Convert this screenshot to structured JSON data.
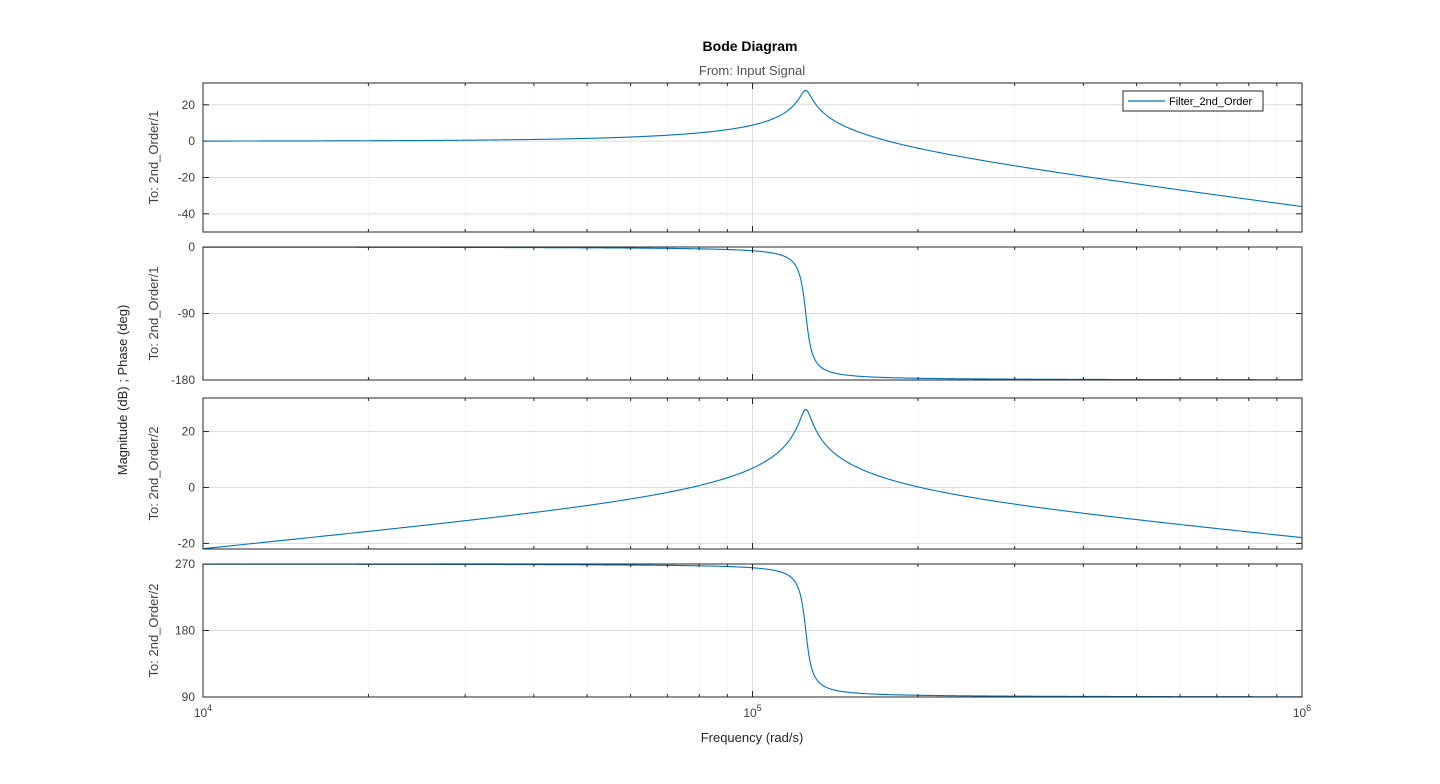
{
  "chart_data": {
    "type": "line",
    "title": "Bode Diagram",
    "subtitle": "From: Input Signal",
    "xlabel": "Frequency  (rad/s)",
    "ylabel": "Magnitude (dB) ; Phase (deg)",
    "x_scale": "log",
    "xlim": [
      10000,
      1000000
    ],
    "x_ticks": [
      {
        "value": 10000,
        "base": "10",
        "exp": "4"
      },
      {
        "value": 100000,
        "base": "10",
        "exp": "5"
      },
      {
        "value": 1000000,
        "base": "10",
        "exp": "6"
      }
    ],
    "grid": true,
    "legend": {
      "position": "top-right",
      "entries": [
        "Filter_2nd_Order"
      ]
    },
    "line_color": "#0072bd",
    "system": {
      "natural_frequency_rad_s": 125000,
      "damping_ratio": 0.02
    },
    "panels": [
      {
        "row_label": "To: 2nd_Order/1",
        "quantity": "magnitude",
        "ylim": [
          -50,
          32
        ],
        "y_ticks": [
          20,
          0,
          -20,
          -40
        ],
        "series": [
          {
            "name": "Filter_2nd_Order",
            "x": [
              10000,
              30000,
              50000,
              70000,
              100000,
              115000,
              125000,
              135000,
              160000,
              200000,
              300000,
              500000,
              700000,
              1000000
            ],
            "y": [
              0.06,
              0.5,
              1.5,
              3.4,
              9.0,
              17.0,
              28.0,
              18.0,
              5.5,
              -2.5,
              -10.4,
              -19.3,
              -25.2,
              -36.0
            ]
          }
        ]
      },
      {
        "row_label": "To: 2nd_Order/1",
        "quantity": "phase",
        "ylim": [
          -180,
          0
        ],
        "y_ticks": [
          0,
          -90,
          -180
        ],
        "series": [
          {
            "name": "Filter_2nd_Order",
            "x": [
              10000,
              50000,
              80000,
              100000,
              115000,
              120000,
              125000,
              130000,
              135000,
              150000,
              200000,
              500000,
              1000000
            ],
            "y": [
              -0.1,
              -0.6,
              -1.5,
              -2.8,
              -8,
              -20,
              -90,
              -160,
              -172,
              -176,
              -178,
              -179.5,
              -180
            ]
          }
        ]
      },
      {
        "row_label": "To: 2nd_Order/2",
        "quantity": "magnitude",
        "ylim": [
          -22,
          32
        ],
        "y_ticks": [
          20,
          0,
          -20
        ],
        "series": [
          {
            "name": "Filter_2nd_Order",
            "x": [
              10000,
              20000,
              40000,
              60000,
              80000,
              100000,
              115000,
              125000,
              135000,
              160000,
              200000,
              300000,
              500000,
              700000,
              1000000
            ],
            "y": [
              -21.9,
              -15.8,
              -9.6,
              -5.2,
              -0.5,
              7.0,
              16.0,
              28.0,
              17.5,
              6.0,
              1.5,
              -4.6,
              -10.4,
              -14.2,
              -17.8
            ]
          }
        ]
      },
      {
        "row_label": "To: 2nd_Order/2",
        "quantity": "phase",
        "ylim": [
          90,
          270
        ],
        "y_ticks": [
          270,
          180,
          90
        ],
        "series": [
          {
            "name": "Filter_2nd_Order",
            "x": [
              10000,
              50000,
              80000,
              100000,
              115000,
              120000,
              125000,
              130000,
              135000,
              150000,
              200000,
              500000,
              1000000
            ],
            "y": [
              269.9,
              269.4,
              268.5,
              267.2,
              262,
              250,
              180,
              110,
              98,
              94,
              92,
              90.5,
              90
            ]
          }
        ]
      }
    ]
  }
}
